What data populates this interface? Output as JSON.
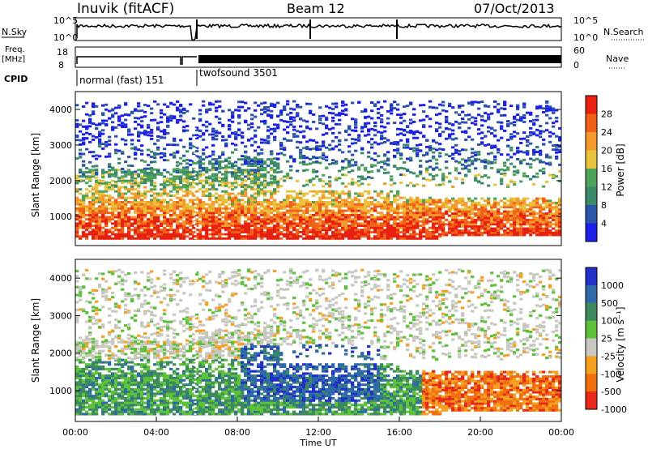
{
  "header": {
    "station": "Inuvik (fitACF)",
    "beam": "Beam 12",
    "date": "07/Oct/2013"
  },
  "top_panels": {
    "nsky": {
      "label": "N.Sky",
      "ticks": [
        "10^5",
        "10^0"
      ],
      "right_label": "N.Search",
      "right_ticks": [
        "10^5",
        "10^0"
      ]
    },
    "freq": {
      "label_line1": "Freq.",
      "label_line2": "[MHz]",
      "ticks": [
        "18",
        "8"
      ],
      "right_label": "Nave",
      "right_ticks": [
        "60",
        "0"
      ]
    },
    "cpid": {
      "label": "CPID",
      "modes": [
        {
          "text": "normal (fast) 151"
        },
        {
          "text": "twofsound 3501"
        }
      ]
    }
  },
  "chart_data": [
    {
      "type": "heatmap",
      "name": "power-panel",
      "ylabel": "Slant Range [km]",
      "ylim": [
        180,
        4500
      ],
      "yticks": [
        "1000",
        "2000",
        "3000",
        "4000"
      ],
      "ytick_values": [
        1000,
        2000,
        3000,
        4000
      ],
      "colorbar": {
        "label": "Power [dB]",
        "ticks": [
          "4",
          "8",
          "12",
          "16",
          "20",
          "24",
          "28"
        ],
        "colors": [
          "#1c20e8",
          "#2a55a8",
          "#3b8a6a",
          "#4ea35a",
          "#e8c23a",
          "#f59a2a",
          "#f06018",
          "#e82010"
        ]
      }
    },
    {
      "type": "heatmap",
      "name": "velocity-panel",
      "ylabel": "Slant Range [km]",
      "ylim": [
        180,
        4500
      ],
      "yticks": [
        "1000",
        "2000",
        "3000",
        "4000"
      ],
      "ytick_values": [
        1000,
        2000,
        3000,
        4000
      ],
      "xlabel": "Time UT",
      "xticks": [
        "00:00",
        "04:00",
        "08:00",
        "12:00",
        "16:00",
        "20:00",
        "00:00"
      ],
      "colorbar": {
        "label": "Velocity [m s⁻¹]",
        "ticks": [
          "1000",
          "500",
          "100",
          "25",
          "-25",
          "-100",
          "-500",
          "-1000"
        ],
        "colors": [
          "#2030c8",
          "#2f6aa8",
          "#3c8a5e",
          "#5cc23a",
          "#c8c8c0",
          "#f5a020",
          "#f07010",
          "#e82818"
        ]
      }
    }
  ]
}
